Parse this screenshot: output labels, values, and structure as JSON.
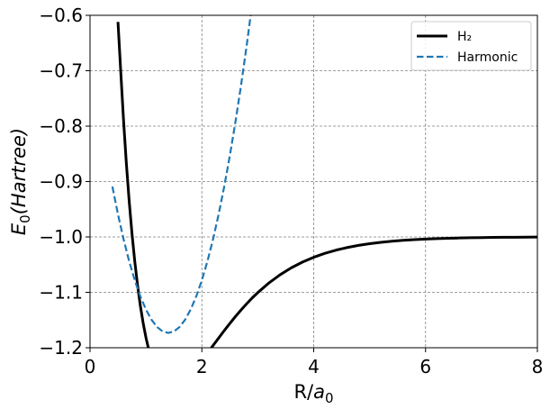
{
  "chart_data": {
    "type": "line",
    "title": "",
    "xlabel": {
      "main": "R/",
      "italic": "a",
      "sub": "0"
    },
    "ylabel": {
      "italic": "E",
      "sub": "0",
      "rest": "(Hartree)"
    },
    "xlim": [
      0,
      8
    ],
    "ylim": [
      -1.2,
      -0.6
    ],
    "xticks": [
      0,
      2,
      4,
      6,
      8
    ],
    "xtick_labels": [
      "0",
      "2",
      "4",
      "6",
      "8"
    ],
    "yticks": [
      -1.2,
      -1.1,
      -1.0,
      -0.9,
      -0.8,
      -0.7,
      -0.6
    ],
    "ytick_labels": [
      "−1.2",
      "−1.1",
      "−1.0",
      "−0.9",
      "−0.8",
      "−0.7",
      "−0.6"
    ],
    "grid": true,
    "legend": "top-right",
    "series": [
      {
        "name": "H₂",
        "style": "solid",
        "color": "#000000",
        "x": [
          0.5,
          0.55,
          0.6,
          0.65,
          0.7,
          0.75,
          0.8,
          0.85,
          0.9,
          0.95,
          1.0,
          1.05,
          1.1,
          1.15,
          1.2,
          1.25,
          1.3,
          1.35,
          1.4,
          1.45,
          1.5,
          1.6,
          1.7,
          1.8,
          1.9,
          2.0,
          2.1,
          2.2,
          2.3,
          2.4,
          2.5,
          2.6,
          2.7,
          2.8,
          2.9,
          3.0,
          3.2,
          3.4,
          3.6,
          3.8,
          4.0,
          4.2,
          4.4,
          4.6,
          4.8,
          5.0,
          5.2,
          5.4,
          5.6,
          5.8,
          6.0,
          6.2,
          6.4,
          6.6,
          6.8,
          7.0,
          7.2,
          7.4,
          7.6,
          7.8,
          8.0
        ],
        "y": [
          -0.4855,
          -0.5762,
          -0.6641,
          -0.7412,
          -0.8085,
          -0.867,
          -0.9175,
          -0.9608,
          -0.9978,
          -1.029,
          -1.0552,
          -1.0769,
          -1.0946,
          -1.1088,
          -1.1199,
          -1.1284,
          -1.1345,
          -1.1385,
          -1.1408,
          -1.1416,
          -1.1411,
          -1.1369,
          -1.1296,
          -1.12,
          -1.1087,
          -1.0962,
          -1.0831,
          -1.0696,
          -1.0561,
          -1.0427,
          -1.0298,
          -1.0173,
          -1.0055,
          -0.9943,
          -0.9838,
          -0.9741,
          -0.9566,
          -0.9418,
          -0.9293,
          -0.9189,
          -0.9103,
          -0.9032,
          -0.8974,
          -0.8927,
          -0.8889,
          -0.8858,
          -0.8833,
          -0.8813,
          -0.8797,
          -0.8784,
          -0.8774,
          -0.8766,
          -0.876,
          -0.8755,
          -0.8751,
          -0.8748,
          -0.8745,
          -0.8743,
          -0.8742,
          -0.874,
          -0.8739
        ],
        "y_offset": -0.1264
      },
      {
        "name": "Harmonic",
        "style": "dashed",
        "color": "#1f77b4",
        "x": [
          0.4,
          0.5,
          0.6,
          0.7,
          0.8,
          0.9,
          1.0,
          1.1,
          1.2,
          1.3,
          1.4,
          1.5,
          1.6,
          1.7,
          1.8,
          1.9,
          2.0,
          2.1,
          2.2,
          2.3,
          2.4,
          2.5,
          2.6,
          2.7,
          2.8,
          2.9,
          3.0
        ],
        "y": [
          -0.9354,
          -0.9856,
          -1.0305,
          -1.0702,
          -1.1045,
          -1.1336,
          -1.1574,
          -1.1759,
          -1.1891,
          -1.197,
          -1.1996,
          -1.197,
          -1.1891,
          -1.1759,
          -1.1574,
          -1.1336,
          -1.1045,
          -1.0702,
          -1.0305,
          -0.9856,
          -0.9354,
          -0.88,
          -0.8192,
          -0.7532,
          -0.6819,
          -0.6054,
          -0.5236
        ],
        "y_offset": 0.0264
      }
    ]
  }
}
